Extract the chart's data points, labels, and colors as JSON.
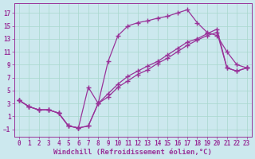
{
  "background_color": "#cce8ee",
  "grid_color": "#a8d8cc",
  "line_color": "#993399",
  "marker": "+",
  "markersize": 4,
  "linewidth": 0.9,
  "xlabel": "Windchill (Refroidissement éolien,°C)",
  "xlabel_fontsize": 6.5,
  "tick_fontsize": 5.5,
  "xlim": [
    -0.5,
    23.5
  ],
  "ylim": [
    -2.2,
    18.5
  ],
  "yticks": [
    -1,
    1,
    3,
    5,
    7,
    9,
    11,
    13,
    15,
    17
  ],
  "xticks": [
    0,
    1,
    2,
    3,
    4,
    5,
    6,
    7,
    8,
    9,
    10,
    11,
    12,
    13,
    14,
    15,
    16,
    17,
    18,
    19,
    20,
    21,
    22,
    23
  ],
  "line1_x": [
    0,
    1,
    2,
    3,
    4,
    5,
    6,
    7,
    8,
    9,
    10,
    11,
    12,
    13,
    14,
    15,
    16,
    17,
    18,
    19,
    20,
    21,
    22,
    23
  ],
  "line1_y": [
    3.5,
    2.5,
    2.0,
    2.0,
    1.5,
    -0.5,
    -0.8,
    -0.5,
    3.0,
    9.5,
    13.5,
    15.0,
    15.5,
    15.8,
    16.2,
    16.5,
    17.0,
    17.5,
    15.5,
    14.0,
    13.5,
    11.0,
    9.0,
    8.5
  ],
  "line2_x": [
    0,
    1,
    2,
    3,
    4,
    5,
    6,
    7,
    8,
    9,
    10,
    11,
    12,
    13,
    14,
    15,
    16,
    17,
    18,
    19,
    20,
    21,
    22,
    23
  ],
  "line2_y": [
    3.5,
    2.5,
    2.0,
    2.0,
    1.5,
    -0.5,
    -0.8,
    5.5,
    3.0,
    4.5,
    6.0,
    7.2,
    8.0,
    8.8,
    9.5,
    10.5,
    11.5,
    12.5,
    13.0,
    13.8,
    14.5,
    8.5,
    8.0,
    8.5
  ],
  "line3_x": [
    0,
    1,
    2,
    3,
    4,
    5,
    6,
    7,
    8,
    9,
    10,
    11,
    12,
    13,
    14,
    15,
    16,
    17,
    18,
    19,
    20,
    21,
    22,
    23
  ],
  "line3_y": [
    3.5,
    2.5,
    2.0,
    2.0,
    1.5,
    -0.5,
    -0.8,
    -0.5,
    3.0,
    4.0,
    5.5,
    6.5,
    7.5,
    8.2,
    9.2,
    10.0,
    11.0,
    12.0,
    12.8,
    13.5,
    14.0,
    8.5,
    8.0,
    8.5
  ]
}
